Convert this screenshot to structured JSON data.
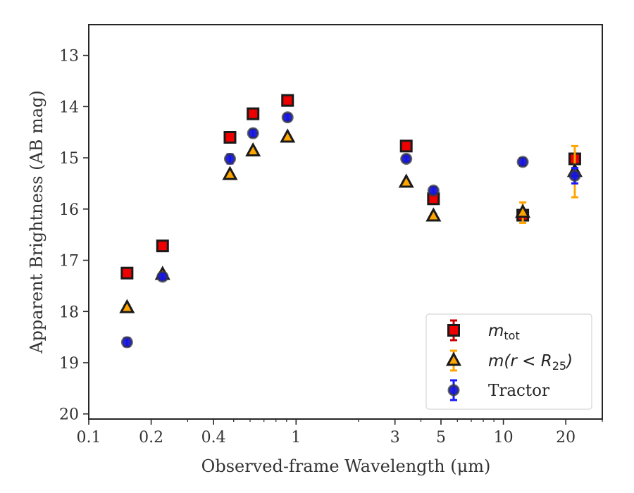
{
  "chart_data": {
    "type": "scatter",
    "title": "",
    "xlabel": "Observed-frame Wavelength (μm)",
    "ylabel": "Apparent Brightness (AB mag)",
    "xscale": "log",
    "xlim": [
      0.1,
      30
    ],
    "ylim": [
      20.1,
      12.4
    ],
    "y_inverted": true,
    "grid": false,
    "legend_placement": "bottom-right",
    "x_ticks": [
      {
        "value": 0.1,
        "label": "0.1"
      },
      {
        "value": 0.2,
        "label": "0.2"
      },
      {
        "value": 0.4,
        "label": "0.4"
      },
      {
        "value": 1,
        "label": "1"
      },
      {
        "value": 3,
        "label": "3"
      },
      {
        "value": 5,
        "label": "5"
      },
      {
        "value": 10,
        "label": "10"
      },
      {
        "value": 20,
        "label": "20"
      }
    ],
    "y_ticks": [
      {
        "value": 13,
        "label": "13"
      },
      {
        "value": 14,
        "label": "14"
      },
      {
        "value": 15,
        "label": "15"
      },
      {
        "value": 16,
        "label": "16"
      },
      {
        "value": 17,
        "label": "17"
      },
      {
        "value": 18,
        "label": "18"
      },
      {
        "value": 19,
        "label": "19"
      },
      {
        "value": 20,
        "label": "20"
      }
    ],
    "series": [
      {
        "legend_main": "m",
        "legend_sub": "tot",
        "marker": "square",
        "color": "#ee0000",
        "edge_color": "#1a1a1a",
        "error_color": "#cc0000",
        "points": [
          {
            "x": 0.153,
            "y": 17.25,
            "err": 0.06
          },
          {
            "x": 0.227,
            "y": 16.72,
            "err": 0.05
          },
          {
            "x": 0.48,
            "y": 14.6,
            "err": 0.04
          },
          {
            "x": 0.62,
            "y": 14.14,
            "err": 0.04
          },
          {
            "x": 0.91,
            "y": 13.88,
            "err": 0.04
          },
          {
            "x": 3.4,
            "y": 14.77,
            "err": 0.04
          },
          {
            "x": 4.6,
            "y": 15.8,
            "err": 0.05
          },
          {
            "x": 12.4,
            "y": 16.12,
            "err": 0.06
          },
          {
            "x": 22.1,
            "y": 15.02,
            "err": 0.1
          }
        ]
      },
      {
        "legend_main": "m(r < R",
        "legend_sub": "25",
        "legend_end": ")",
        "marker": "triangle",
        "color": "#ffa500",
        "edge_color": "#1a1a1a",
        "error_color": "#ffa500",
        "points": [
          {
            "x": 0.153,
            "y": 17.93,
            "err": 0.05
          },
          {
            "x": 0.227,
            "y": 17.28,
            "err": 0.05
          },
          {
            "x": 0.48,
            "y": 15.33,
            "err": 0.04
          },
          {
            "x": 0.62,
            "y": 14.87,
            "err": 0.04
          },
          {
            "x": 0.91,
            "y": 14.6,
            "err": 0.04
          },
          {
            "x": 3.4,
            "y": 15.48,
            "err": 0.04
          },
          {
            "x": 4.6,
            "y": 16.14,
            "err": 0.05
          },
          {
            "x": 12.4,
            "y": 16.07,
            "err": 0.2
          },
          {
            "x": 22.1,
            "y": 15.27,
            "err": 0.5
          }
        ]
      },
      {
        "legend_main": "Tractor",
        "marker": "circle",
        "color": "#1515dd",
        "edge_color": "#3a3a3a",
        "error_color": "#1a1aff",
        "points": [
          {
            "x": 0.153,
            "y": 18.6,
            "err": 0.08
          },
          {
            "x": 0.227,
            "y": 17.32,
            "err": 0.06
          },
          {
            "x": 0.48,
            "y": 15.02,
            "err": 0.09
          },
          {
            "x": 0.62,
            "y": 14.52,
            "err": 0.07
          },
          {
            "x": 0.91,
            "y": 14.21,
            "err": 0.06
          },
          {
            "x": 3.4,
            "y": 15.02,
            "err": 0.05
          },
          {
            "x": 4.6,
            "y": 15.64,
            "err": 0.07
          },
          {
            "x": 12.4,
            "y": 15.08,
            "err": 0.07
          },
          {
            "x": 22.1,
            "y": 15.35,
            "err": 0.15
          }
        ]
      }
    ]
  }
}
